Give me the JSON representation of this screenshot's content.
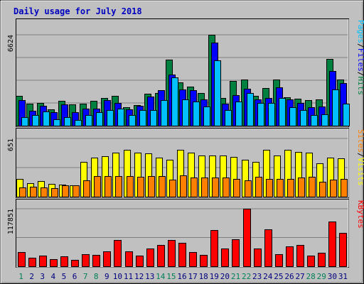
{
  "chart_data": {
    "type": "bar",
    "title": "Daily usage for July 2018",
    "categories": [
      "1",
      "2",
      "3",
      "4",
      "5",
      "6",
      "7",
      "8",
      "9",
      "10",
      "11",
      "12",
      "13",
      "14",
      "15",
      "16",
      "17",
      "18",
      "19",
      "20",
      "21",
      "22",
      "23",
      "24",
      "25",
      "26",
      "27",
      "28",
      "29",
      "30",
      "31"
    ],
    "weekend_days": [
      "1",
      "7",
      "8",
      "14",
      "15",
      "21",
      "22",
      "28",
      "29"
    ],
    "panels": [
      {
        "id": "hits",
        "ymax_label": "6624",
        "ymax": 6624,
        "right_label": [
          "Pages",
          "/",
          "Files",
          "/",
          "Hits"
        ],
        "series": [
          {
            "name": "Hits",
            "color": "#008040",
            "values": [
              2180,
              1580,
              1640,
              1180,
              1790,
              1560,
              1620,
              1820,
              2000,
              2180,
              1320,
              1500,
              2340,
              2380,
              4820,
              3180,
              2840,
              2380,
              6624,
              2020,
              3240,
              3340,
              2180,
              2740,
              3340,
              2060,
              1980,
              1840,
              1900,
              4880,
              3340
            ]
          },
          {
            "name": "Files",
            "color": "#0000ff",
            "values": [
              1880,
              1080,
              1440,
              980,
              1560,
              1000,
              1240,
              1240,
              1860,
              1640,
              1200,
              1460,
              2100,
              2600,
              3720,
              2640,
              2580,
              1940,
              6060,
              1580,
              2240,
              2680,
              1940,
              2040,
              2780,
              1940,
              1660,
              1340,
              1400,
              3960,
              3130
            ]
          },
          {
            "name": "Pages",
            "color": "#00c0ff",
            "values": [
              620,
              760,
              1040,
              440,
              620,
              400,
              770,
              1000,
              1120,
              1220,
              800,
              1120,
              1140,
              1860,
              3520,
              1940,
              1760,
              1380,
              4740,
              1120,
              1760,
              2380,
              1660,
              1660,
              2000,
              1340,
              1160,
              760,
              820,
              2660,
              1580
            ]
          }
        ]
      },
      {
        "id": "visits",
        "ymax_label": "651",
        "ymax": 651,
        "right_label": [
          "Sites",
          "/",
          "Visits"
        ],
        "series": [
          {
            "name": "Visits",
            "color": "#ffff00",
            "values": [
              200,
              149,
              174,
              146,
              138,
              130,
              392,
              440,
              450,
              495,
              521,
              490,
              481,
              440,
              410,
              521,
              490,
              460,
              460,
              460,
              445,
              410,
              389,
              521,
              460,
              521,
              500,
              489,
              370,
              440,
              426
            ]
          },
          {
            "name": "Sites",
            "color": "#ff8000",
            "values": [
              105,
              110,
              100,
              95,
              130,
              125,
              183,
              231,
              233,
              231,
              231,
              222,
              232,
              230,
              190,
              240,
              212,
              211,
              212,
              212,
              200,
              182,
              225,
              200,
              200,
              201,
              212,
              220,
              170,
              190,
              196
            ]
          }
        ]
      },
      {
        "id": "kbytes",
        "ymax_label": "117851",
        "ymax": 117851,
        "right_label": [
          "KBytes"
        ],
        "series": [
          {
            "name": "KBytes",
            "color": "#ff0000",
            "values": [
              29000,
              18000,
              22000,
              14000,
              21000,
              12500,
              25000,
              23000,
              30000,
              54000,
              30000,
              22000,
              36000,
              43000,
              54000,
              48000,
              29000,
              23000,
              74000,
              36000,
              55000,
              117851,
              36000,
              76000,
              25000,
              41000,
              43000,
              22000,
              28000,
              92000,
              69000
            ]
          }
        ]
      }
    ],
    "grid": true
  }
}
